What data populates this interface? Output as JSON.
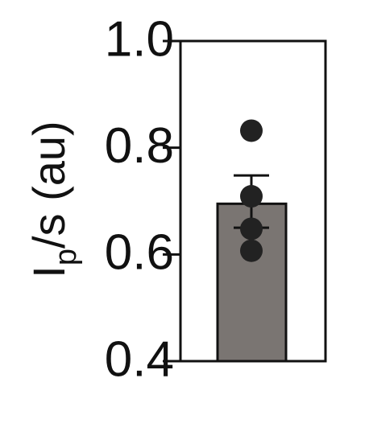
{
  "chart_data": {
    "type": "bar",
    "title": "",
    "xlabel": "",
    "ylabel": {
      "main": "I",
      "subscript": "p",
      "rest": "/s (au)"
    },
    "ylim": [
      0.4,
      1.0
    ],
    "yticks": [
      0.4,
      0.6,
      0.8,
      1.0
    ],
    "ytick_labels": [
      "0.4",
      "0.6",
      "0.8",
      "1.0"
    ],
    "categories": [
      ""
    ],
    "values": [
      0.695
    ],
    "error": {
      "upper": 0.748,
      "lower": 0.65
    },
    "points": [
      0.832,
      0.709,
      0.648,
      0.607
    ],
    "grid": false,
    "legend": "none",
    "colors": {
      "bar": "#7a7572",
      "bar_edge": "#111111",
      "points": "#222222",
      "axis": "#111111"
    }
  }
}
